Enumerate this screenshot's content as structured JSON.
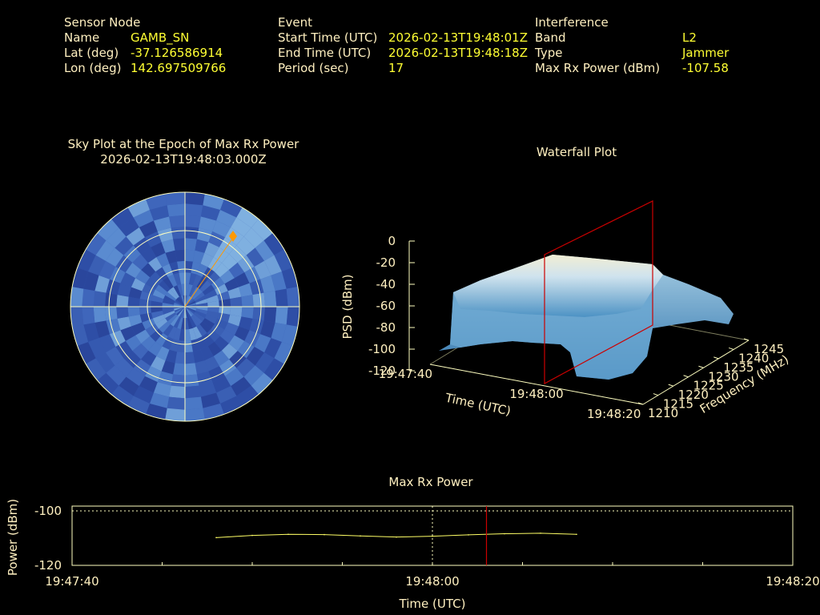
{
  "header": {
    "sensor": {
      "title": "Sensor Node",
      "name_label": "Name",
      "name": "GAMB_SN",
      "lat_label": "Lat (deg)",
      "lat": "-37.126586914",
      "lon_label": "Lon (deg)",
      "lon": "142.697509766"
    },
    "event": {
      "title": "Event",
      "start_label": "Start Time (UTC)",
      "start": "2026-02-13T19:48:01Z",
      "end_label": "End Time (UTC)",
      "end": "2026-02-13T19:48:18Z",
      "period_label": "Period (sec)",
      "period": "17"
    },
    "interference": {
      "title": "Interference",
      "band_label": "Band",
      "band": "L2",
      "type_label": "Type",
      "type": "Jammer",
      "max_label": "Max Rx Power (dBm)",
      "max": "-107.58"
    }
  },
  "colors": {
    "text": "#fff0c0",
    "value": "#ffff33",
    "marker": "#ff9900",
    "cursor": "#cc0000",
    "trace": "#ffff66"
  },
  "chart_data": [
    {
      "type": "polar",
      "title": "Sky Plot at the Epoch of Max Rx Power",
      "subtitle": "2026-02-13T19:48:03.000Z",
      "rings": 3,
      "source_direction": {
        "azimuth_deg": 34,
        "elevation_deg": 15
      }
    },
    {
      "type": "surface",
      "title": "Waterfall Plot",
      "xlabel": "Time (UTC)",
      "ylabel": "Frequency (MHz)",
      "zlabel": "PSD (dBm)",
      "x_ticks": [
        "19:47:40",
        "19:48:00",
        "19:48:20"
      ],
      "y_ticks": [
        "1210",
        "1215",
        "1220",
        "1225",
        "1230",
        "1235",
        "1240",
        "1245"
      ],
      "z_ticks": [
        "0",
        "-20",
        "-40",
        "-60",
        "-80",
        "-100",
        "-120"
      ],
      "zlim": [
        -120,
        0
      ],
      "plateau_psd_dbm": -35,
      "floor_psd_dbm": -95,
      "cursor_time": "19:48:03"
    },
    {
      "type": "line",
      "title": "Max Rx Power",
      "xlabel": "Time (UTC)",
      "ylabel": "Power (dBm)",
      "x_ticks": [
        "19:47:40",
        "19:48:00",
        "19:48:20"
      ],
      "y_ticks": [
        "-100",
        "-120"
      ],
      "xlim": [
        0,
        40
      ],
      "ylim": [
        -120,
        -100
      ],
      "cursor_x": 23,
      "series": [
        {
          "x": [
            8,
            10,
            12,
            14,
            16,
            18,
            20,
            22,
            24,
            26,
            28
          ],
          "y": [
            -109.8,
            -109.0,
            -108.6,
            -108.7,
            -109.2,
            -109.6,
            -109.3,
            -108.8,
            -108.4,
            -108.2,
            -108.6
          ]
        }
      ]
    }
  ]
}
